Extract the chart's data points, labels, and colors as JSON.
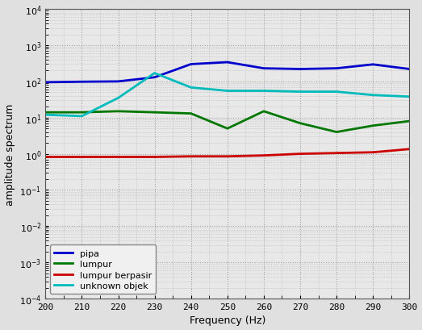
{
  "freq": [
    200,
    210,
    220,
    230,
    240,
    250,
    260,
    270,
    280,
    290,
    300
  ],
  "pipa": [
    95,
    98,
    100,
    130,
    300,
    340,
    230,
    220,
    230,
    295,
    220
  ],
  "lumpur": [
    14,
    14,
    15,
    14,
    13,
    5,
    15,
    7,
    4,
    6,
    8
  ],
  "lumpur_berpasir": [
    0.82,
    0.82,
    0.82,
    0.82,
    0.85,
    0.85,
    0.9,
    1.0,
    1.05,
    1.1,
    1.35
  ],
  "unknown_objek": [
    12,
    11,
    35,
    170,
    68,
    55,
    55,
    52,
    52,
    42,
    38
  ],
  "colors": {
    "pipa": "#0000cc",
    "lumpur": "#007700",
    "lumpur_berpasir": "#cc0000",
    "unknown_objek": "#00bbbb"
  },
  "xlabel": "Frequency (Hz)",
  "ylabel": "amplitude spectrum",
  "xlim": [
    200,
    300
  ],
  "ylim_log_min": -4,
  "ylim_log_max": 4,
  "xticks": [
    200,
    210,
    220,
    230,
    240,
    250,
    260,
    270,
    280,
    290,
    300
  ],
  "legend": [
    "pipa",
    "lumpur",
    "lumpur berpasir",
    "unknown objek"
  ],
  "legend_colors": [
    "#0000cc",
    "#007700",
    "#cc0000",
    "#00bbbb"
  ],
  "axes_facecolor": "#e8e8e8",
  "fig_facecolor": "#e0e0e0",
  "grid_color": "#ffffff",
  "grid_dot_color": "#888888",
  "linewidth": 2.0,
  "axis_fontsize": 9,
  "tick_fontsize": 8,
  "legend_fontsize": 8
}
